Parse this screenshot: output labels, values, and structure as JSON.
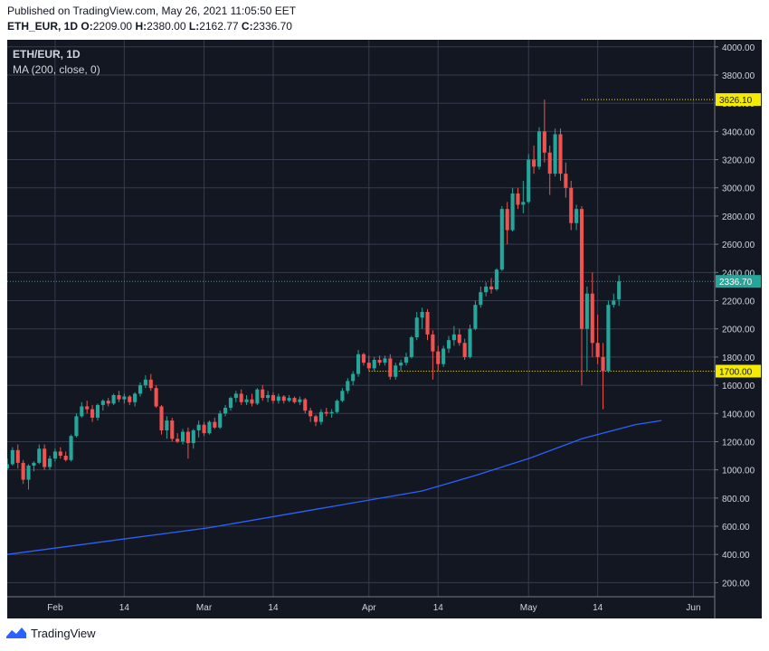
{
  "header": {
    "published": "Published on TradingView.com, May 26, 2021 11:05:50 EET",
    "symbol": "ETH_EUR, 1D",
    "o_label": "O:",
    "o_value": "2209.00",
    "h_label": "H:",
    "h_value": "2380.00",
    "l_label": "L:",
    "l_value": "2162.77",
    "c_label": "C:",
    "c_value": "2336.70"
  },
  "footer": {
    "brand": "TradingView"
  },
  "colors": {
    "background": "#131722",
    "up": "#26a69a",
    "down": "#ef5350",
    "ma": "#2962ff",
    "level": "#f5eb00",
    "grid": "#363c4e"
  },
  "chart_data": {
    "type": "candlestick",
    "legend": [
      "ETH/EUR, 1D",
      "MA (200, close, 0)"
    ],
    "ylim": [
      100,
      4050
    ],
    "y_ticks": [
      200,
      400,
      600,
      800,
      1000,
      1200,
      1400,
      1600,
      1800,
      2000,
      2200,
      2400,
      2600,
      2800,
      3000,
      3200,
      3400,
      3600,
      3800,
      4000
    ],
    "y_tick_labels": [
      "200.00",
      "400.00",
      "600.00",
      "800.00",
      "1000.00",
      "1200.00",
      "1400.00",
      "1600.00",
      "1800.00",
      "2000.00",
      "2200.00",
      "2400.00",
      "2600.00",
      "2800.00",
      "3000.00",
      "3200.00",
      "3400.00",
      "3600.00",
      "3800.00",
      "4000.00"
    ],
    "x_ticks": [
      {
        "day": 31,
        "label": "Feb"
      },
      {
        "day": 44,
        "label": "14"
      },
      {
        "day": 59,
        "label": "Mar"
      },
      {
        "day": 72,
        "label": "14"
      },
      {
        "day": 90,
        "label": "Apr"
      },
      {
        "day": 103,
        "label": "14"
      },
      {
        "day": 120,
        "label": "May"
      },
      {
        "day": 133,
        "label": "14"
      },
      {
        "day": 151,
        "label": "Jun"
      }
    ],
    "x_range": [
      22,
      155
    ],
    "levels": [
      {
        "value": 3626.1,
        "label": "3626.10",
        "from_day": 130
      },
      {
        "value": 1700.0,
        "label": "1700.00",
        "from_day": 90
      }
    ],
    "last_price": {
      "value": 2336.7,
      "label": "2336.70"
    },
    "ma200": {
      "name": "MA (200, close, 0)",
      "x_days": [
        22,
        40,
        60,
        80,
        100,
        110,
        120,
        130,
        140,
        145
      ],
      "values": [
        400,
        490,
        590,
        720,
        850,
        960,
        1080,
        1220,
        1320,
        1350
      ]
    },
    "candles": [
      {
        "day": 22,
        "o": 1010,
        "h": 1080,
        "l": 1000,
        "c": 1040
      },
      {
        "day": 23,
        "o": 1040,
        "h": 1160,
        "l": 1030,
        "c": 1140
      },
      {
        "day": 24,
        "o": 1140,
        "h": 1180,
        "l": 1010,
        "c": 1050
      },
      {
        "day": 25,
        "o": 1050,
        "h": 1070,
        "l": 900,
        "c": 930
      },
      {
        "day": 26,
        "o": 930,
        "h": 1040,
        "l": 860,
        "c": 1030
      },
      {
        "day": 27,
        "o": 1030,
        "h": 1060,
        "l": 990,
        "c": 1050
      },
      {
        "day": 28,
        "o": 1050,
        "h": 1180,
        "l": 1040,
        "c": 1150
      },
      {
        "day": 29,
        "o": 1150,
        "h": 1180,
        "l": 1000,
        "c": 1020
      },
      {
        "day": 30,
        "o": 1020,
        "h": 1100,
        "l": 1000,
        "c": 1080
      },
      {
        "day": 31,
        "o": 1080,
        "h": 1150,
        "l": 1060,
        "c": 1130
      },
      {
        "day": 32,
        "o": 1130,
        "h": 1160,
        "l": 1080,
        "c": 1100
      },
      {
        "day": 33,
        "o": 1100,
        "h": 1130,
        "l": 1060,
        "c": 1070
      },
      {
        "day": 34,
        "o": 1070,
        "h": 1250,
        "l": 1060,
        "c": 1240
      },
      {
        "day": 35,
        "o": 1240,
        "h": 1400,
        "l": 1230,
        "c": 1380
      },
      {
        "day": 36,
        "o": 1380,
        "h": 1480,
        "l": 1370,
        "c": 1450
      },
      {
        "day": 37,
        "o": 1450,
        "h": 1490,
        "l": 1400,
        "c": 1430
      },
      {
        "day": 38,
        "o": 1430,
        "h": 1460,
        "l": 1340,
        "c": 1370
      },
      {
        "day": 39,
        "o": 1370,
        "h": 1470,
        "l": 1350,
        "c": 1460
      },
      {
        "day": 40,
        "o": 1460,
        "h": 1500,
        "l": 1420,
        "c": 1490
      },
      {
        "day": 41,
        "o": 1490,
        "h": 1510,
        "l": 1450,
        "c": 1470
      },
      {
        "day": 42,
        "o": 1470,
        "h": 1540,
        "l": 1460,
        "c": 1530
      },
      {
        "day": 43,
        "o": 1530,
        "h": 1560,
        "l": 1480,
        "c": 1500
      },
      {
        "day": 44,
        "o": 1500,
        "h": 1540,
        "l": 1470,
        "c": 1520
      },
      {
        "day": 45,
        "o": 1520,
        "h": 1530,
        "l": 1460,
        "c": 1480
      },
      {
        "day": 46,
        "o": 1480,
        "h": 1550,
        "l": 1450,
        "c": 1540
      },
      {
        "day": 47,
        "o": 1540,
        "h": 1620,
        "l": 1520,
        "c": 1600
      },
      {
        "day": 48,
        "o": 1600,
        "h": 1670,
        "l": 1580,
        "c": 1640
      },
      {
        "day": 49,
        "o": 1640,
        "h": 1680,
        "l": 1560,
        "c": 1580
      },
      {
        "day": 50,
        "o": 1580,
        "h": 1600,
        "l": 1440,
        "c": 1450
      },
      {
        "day": 51,
        "o": 1450,
        "h": 1460,
        "l": 1250,
        "c": 1280
      },
      {
        "day": 52,
        "o": 1280,
        "h": 1380,
        "l": 1220,
        "c": 1350
      },
      {
        "day": 53,
        "o": 1350,
        "h": 1370,
        "l": 1200,
        "c": 1220
      },
      {
        "day": 54,
        "o": 1220,
        "h": 1260,
        "l": 1190,
        "c": 1200
      },
      {
        "day": 55,
        "o": 1200,
        "h": 1290,
        "l": 1180,
        "c": 1270
      },
      {
        "day": 56,
        "o": 1270,
        "h": 1300,
        "l": 1080,
        "c": 1190
      },
      {
        "day": 57,
        "o": 1190,
        "h": 1290,
        "l": 1150,
        "c": 1280
      },
      {
        "day": 58,
        "o": 1280,
        "h": 1350,
        "l": 1230,
        "c": 1320
      },
      {
        "day": 59,
        "o": 1320,
        "h": 1340,
        "l": 1240,
        "c": 1260
      },
      {
        "day": 60,
        "o": 1260,
        "h": 1350,
        "l": 1250,
        "c": 1340
      },
      {
        "day": 61,
        "o": 1340,
        "h": 1370,
        "l": 1290,
        "c": 1300
      },
      {
        "day": 62,
        "o": 1300,
        "h": 1420,
        "l": 1290,
        "c": 1400
      },
      {
        "day": 63,
        "o": 1400,
        "h": 1460,
        "l": 1380,
        "c": 1440
      },
      {
        "day": 64,
        "o": 1440,
        "h": 1520,
        "l": 1420,
        "c": 1510
      },
      {
        "day": 65,
        "o": 1510,
        "h": 1560,
        "l": 1480,
        "c": 1540
      },
      {
        "day": 66,
        "o": 1540,
        "h": 1570,
        "l": 1460,
        "c": 1480
      },
      {
        "day": 67,
        "o": 1480,
        "h": 1530,
        "l": 1460,
        "c": 1500
      },
      {
        "day": 68,
        "o": 1500,
        "h": 1540,
        "l": 1450,
        "c": 1470
      },
      {
        "day": 69,
        "o": 1470,
        "h": 1580,
        "l": 1460,
        "c": 1570
      },
      {
        "day": 70,
        "o": 1570,
        "h": 1600,
        "l": 1490,
        "c": 1510
      },
      {
        "day": 71,
        "o": 1510,
        "h": 1560,
        "l": 1480,
        "c": 1530
      },
      {
        "day": 72,
        "o": 1530,
        "h": 1550,
        "l": 1470,
        "c": 1490
      },
      {
        "day": 73,
        "o": 1490,
        "h": 1540,
        "l": 1470,
        "c": 1520
      },
      {
        "day": 74,
        "o": 1520,
        "h": 1530,
        "l": 1470,
        "c": 1490
      },
      {
        "day": 75,
        "o": 1490,
        "h": 1530,
        "l": 1480,
        "c": 1510
      },
      {
        "day": 76,
        "o": 1510,
        "h": 1520,
        "l": 1470,
        "c": 1480
      },
      {
        "day": 77,
        "o": 1480,
        "h": 1520,
        "l": 1460,
        "c": 1500
      },
      {
        "day": 78,
        "o": 1500,
        "h": 1510,
        "l": 1400,
        "c": 1420
      },
      {
        "day": 79,
        "o": 1420,
        "h": 1440,
        "l": 1340,
        "c": 1380
      },
      {
        "day": 80,
        "o": 1380,
        "h": 1390,
        "l": 1310,
        "c": 1340
      },
      {
        "day": 81,
        "o": 1340,
        "h": 1430,
        "l": 1320,
        "c": 1410
      },
      {
        "day": 82,
        "o": 1410,
        "h": 1440,
        "l": 1380,
        "c": 1400
      },
      {
        "day": 83,
        "o": 1400,
        "h": 1430,
        "l": 1370,
        "c": 1410
      },
      {
        "day": 84,
        "o": 1410,
        "h": 1500,
        "l": 1400,
        "c": 1490
      },
      {
        "day": 85,
        "o": 1490,
        "h": 1580,
        "l": 1480,
        "c": 1560
      },
      {
        "day": 86,
        "o": 1560,
        "h": 1650,
        "l": 1540,
        "c": 1630
      },
      {
        "day": 87,
        "o": 1630,
        "h": 1700,
        "l": 1600,
        "c": 1680
      },
      {
        "day": 88,
        "o": 1680,
        "h": 1850,
        "l": 1660,
        "c": 1820
      },
      {
        "day": 89,
        "o": 1820,
        "h": 1830,
        "l": 1740,
        "c": 1760
      },
      {
        "day": 90,
        "o": 1760,
        "h": 1810,
        "l": 1700,
        "c": 1720
      },
      {
        "day": 91,
        "o": 1720,
        "h": 1800,
        "l": 1700,
        "c": 1780
      },
      {
        "day": 92,
        "o": 1780,
        "h": 1810,
        "l": 1740,
        "c": 1760
      },
      {
        "day": 93,
        "o": 1760,
        "h": 1810,
        "l": 1740,
        "c": 1790
      },
      {
        "day": 94,
        "o": 1790,
        "h": 1820,
        "l": 1640,
        "c": 1660
      },
      {
        "day": 95,
        "o": 1660,
        "h": 1760,
        "l": 1640,
        "c": 1740
      },
      {
        "day": 96,
        "o": 1740,
        "h": 1780,
        "l": 1700,
        "c": 1760
      },
      {
        "day": 97,
        "o": 1760,
        "h": 1830,
        "l": 1740,
        "c": 1800
      },
      {
        "day": 98,
        "o": 1800,
        "h": 1950,
        "l": 1790,
        "c": 1940
      },
      {
        "day": 99,
        "o": 1940,
        "h": 2120,
        "l": 1920,
        "c": 2080
      },
      {
        "day": 100,
        "o": 2080,
        "h": 2150,
        "l": 2000,
        "c": 2120
      },
      {
        "day": 101,
        "o": 2120,
        "h": 2140,
        "l": 1920,
        "c": 1960
      },
      {
        "day": 102,
        "o": 1960,
        "h": 1990,
        "l": 1640,
        "c": 1840
      },
      {
        "day": 103,
        "o": 1840,
        "h": 1880,
        "l": 1700,
        "c": 1750
      },
      {
        "day": 104,
        "o": 1750,
        "h": 1880,
        "l": 1730,
        "c": 1860
      },
      {
        "day": 105,
        "o": 1860,
        "h": 1950,
        "l": 1830,
        "c": 1920
      },
      {
        "day": 106,
        "o": 1920,
        "h": 2020,
        "l": 1880,
        "c": 1960
      },
      {
        "day": 107,
        "o": 1960,
        "h": 2000,
        "l": 1880,
        "c": 1900
      },
      {
        "day": 108,
        "o": 1900,
        "h": 1930,
        "l": 1780,
        "c": 1800
      },
      {
        "day": 109,
        "o": 1800,
        "h": 2030,
        "l": 1790,
        "c": 2000
      },
      {
        "day": 110,
        "o": 2000,
        "h": 2200,
        "l": 1990,
        "c": 2170
      },
      {
        "day": 111,
        "o": 2170,
        "h": 2300,
        "l": 2150,
        "c": 2260
      },
      {
        "day": 112,
        "o": 2260,
        "h": 2330,
        "l": 2230,
        "c": 2300
      },
      {
        "day": 113,
        "o": 2300,
        "h": 2360,
        "l": 2250,
        "c": 2280
      },
      {
        "day": 114,
        "o": 2280,
        "h": 2430,
        "l": 2270,
        "c": 2420
      },
      {
        "day": 115,
        "o": 2420,
        "h": 2870,
        "l": 2410,
        "c": 2850
      },
      {
        "day": 116,
        "o": 2850,
        "h": 2900,
        "l": 2600,
        "c": 2700
      },
      {
        "day": 117,
        "o": 2700,
        "h": 3000,
        "l": 2690,
        "c": 2960
      },
      {
        "day": 118,
        "o": 2960,
        "h": 3000,
        "l": 2850,
        "c": 2880
      },
      {
        "day": 119,
        "o": 2880,
        "h": 3050,
        "l": 2820,
        "c": 2900
      },
      {
        "day": 120,
        "o": 2900,
        "h": 3240,
        "l": 2890,
        "c": 3200
      },
      {
        "day": 121,
        "o": 3200,
        "h": 3300,
        "l": 3100,
        "c": 3150
      },
      {
        "day": 122,
        "o": 3150,
        "h": 3430,
        "l": 3130,
        "c": 3400
      },
      {
        "day": 123,
        "o": 3400,
        "h": 3626,
        "l": 3180,
        "c": 3250
      },
      {
        "day": 124,
        "o": 3250,
        "h": 3300,
        "l": 2950,
        "c": 3100
      },
      {
        "day": 125,
        "o": 3100,
        "h": 3420,
        "l": 3080,
        "c": 3380
      },
      {
        "day": 126,
        "o": 3380,
        "h": 3420,
        "l": 3050,
        "c": 3100
      },
      {
        "day": 127,
        "o": 3100,
        "h": 3180,
        "l": 2930,
        "c": 3000
      },
      {
        "day": 128,
        "o": 3000,
        "h": 3050,
        "l": 2700,
        "c": 2750
      },
      {
        "day": 129,
        "o": 2750,
        "h": 2880,
        "l": 2700,
        "c": 2850
      },
      {
        "day": 130,
        "o": 2850,
        "h": 2870,
        "l": 1600,
        "c": 2000
      },
      {
        "day": 131,
        "o": 2000,
        "h": 2300,
        "l": 1700,
        "c": 2250
      },
      {
        "day": 132,
        "o": 2250,
        "h": 2400,
        "l": 1800,
        "c": 1900
      },
      {
        "day": 133,
        "o": 1900,
        "h": 2100,
        "l": 1750,
        "c": 1800
      },
      {
        "day": 134,
        "o": 1800,
        "h": 1900,
        "l": 1430,
        "c": 1700
      },
      {
        "day": 135,
        "o": 1700,
        "h": 2200,
        "l": 1690,
        "c": 2170
      },
      {
        "day": 136,
        "o": 2170,
        "h": 2250,
        "l": 2150,
        "c": 2200
      },
      {
        "day": 137,
        "o": 2209,
        "h": 2380,
        "l": 2162.77,
        "c": 2336.7
      }
    ]
  }
}
